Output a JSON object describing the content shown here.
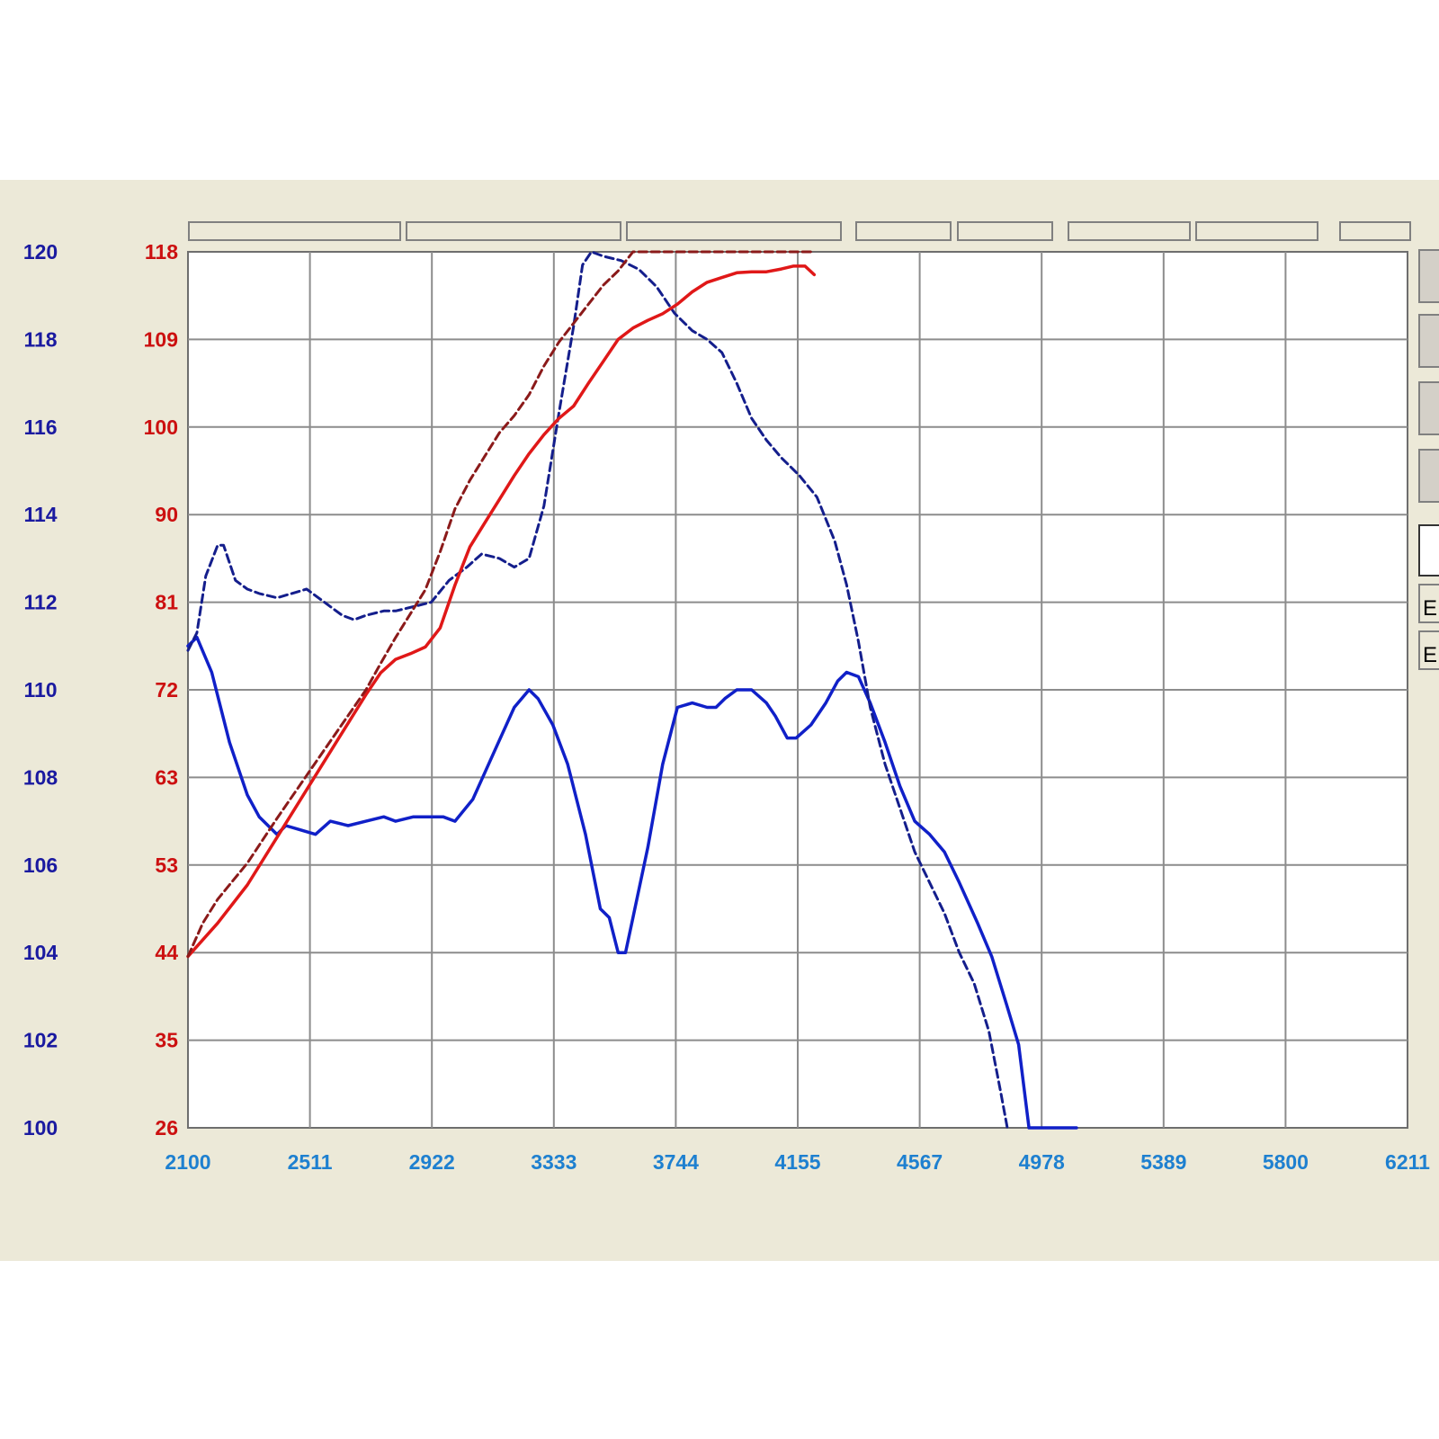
{
  "colors": {
    "background": "#ece9d8",
    "plot_background": "#ffffff",
    "grid": "#8c8c8c",
    "left_axis_blue": "#1a1aa0",
    "left_axis_red": "#cc1010",
    "x_axis": "#1e80d0",
    "series_blue": "#1020c8",
    "series_red": "#e01818",
    "series_red_dashed": "#8b1a1a",
    "series_blue_dashed": "#141e8c"
  },
  "legend_tabs": [
    {
      "label": "E",
      "color": "#1020c8"
    },
    {
      "label": "E",
      "color": "#e01818"
    }
  ],
  "chart_data": {
    "type": "line",
    "grid": true,
    "x_ticks": [
      "2100",
      "2511",
      "2922",
      "3333",
      "3744",
      "4155",
      "4567",
      "4978",
      "5389",
      "5800",
      "6211"
    ],
    "xlim": [
      2100,
      6211
    ],
    "y_left_outer_ticks": [
      "120",
      "118",
      "116",
      "114",
      "112",
      "110",
      "108",
      "106",
      "104",
      "102",
      "100"
    ],
    "y_left_outer_lim": [
      100,
      120
    ],
    "y_left_inner_ticks": [
      "118",
      "109",
      "100",
      "90",
      "81",
      "72",
      "63",
      "53",
      "44",
      "35",
      "26"
    ],
    "y_left_inner_lim": [
      26,
      118
    ],
    "series": [
      {
        "axis": "outer",
        "style": "solid",
        "color": "#1020c8",
        "points": [
          [
            2100,
            111.0
          ],
          [
            2130,
            111.2
          ],
          [
            2180,
            110.4
          ],
          [
            2240,
            108.8
          ],
          [
            2300,
            107.6
          ],
          [
            2340,
            107.1
          ],
          [
            2400,
            106.7
          ],
          [
            2430,
            106.9
          ],
          [
            2480,
            106.8
          ],
          [
            2530,
            106.7
          ],
          [
            2580,
            107.0
          ],
          [
            2640,
            106.9
          ],
          [
            2700,
            107.0
          ],
          [
            2760,
            107.1
          ],
          [
            2800,
            107.0
          ],
          [
            2860,
            107.1
          ],
          [
            2900,
            107.1
          ],
          [
            2960,
            107.1
          ],
          [
            3000,
            107.0
          ],
          [
            3060,
            107.5
          ],
          [
            3140,
            108.7
          ],
          [
            3200,
            109.6
          ],
          [
            3250,
            110.0
          ],
          [
            3280,
            109.8
          ],
          [
            3330,
            109.2
          ],
          [
            3380,
            108.3
          ],
          [
            3440,
            106.7
          ],
          [
            3490,
            105.0
          ],
          [
            3520,
            104.8
          ],
          [
            3550,
            104.0
          ],
          [
            3575,
            104.0
          ],
          [
            3600,
            104.8
          ],
          [
            3650,
            106.4
          ],
          [
            3700,
            108.3
          ],
          [
            3750,
            109.6
          ],
          [
            3800,
            109.7
          ],
          [
            3850,
            109.6
          ],
          [
            3880,
            109.6
          ],
          [
            3910,
            109.8
          ],
          [
            3950,
            110.0
          ],
          [
            4000,
            110.0
          ],
          [
            4050,
            109.7
          ],
          [
            4080,
            109.4
          ],
          [
            4120,
            108.9
          ],
          [
            4150,
            108.9
          ],
          [
            4200,
            109.2
          ],
          [
            4250,
            109.7
          ],
          [
            4290,
            110.2
          ],
          [
            4320,
            110.4
          ],
          [
            4360,
            110.3
          ],
          [
            4400,
            109.7
          ],
          [
            4450,
            108.8
          ],
          [
            4500,
            107.8
          ],
          [
            4550,
            107.0
          ],
          [
            4600,
            106.7
          ],
          [
            4650,
            106.3
          ],
          [
            4700,
            105.6
          ],
          [
            4760,
            104.7
          ],
          [
            4810,
            103.9
          ],
          [
            4860,
            102.8
          ],
          [
            4900,
            101.9
          ],
          [
            4935,
            100.0
          ],
          [
            5000,
            100.0
          ],
          [
            5050,
            100.0
          ],
          [
            5095,
            100.0
          ]
        ]
      },
      {
        "axis": "outer",
        "style": "dashed",
        "color": "#141e8c",
        "points": [
          [
            2100,
            110.9
          ],
          [
            2130,
            111.3
          ],
          [
            2160,
            112.6
          ],
          [
            2200,
            113.3
          ],
          [
            2220,
            113.3
          ],
          [
            2260,
            112.5
          ],
          [
            2300,
            112.3
          ],
          [
            2340,
            112.2
          ],
          [
            2400,
            112.1
          ],
          [
            2450,
            112.2
          ],
          [
            2500,
            112.3
          ],
          [
            2560,
            112.0
          ],
          [
            2620,
            111.7
          ],
          [
            2660,
            111.6
          ],
          [
            2700,
            111.7
          ],
          [
            2760,
            111.8
          ],
          [
            2800,
            111.8
          ],
          [
            2860,
            111.9
          ],
          [
            2920,
            112.0
          ],
          [
            2980,
            112.5
          ],
          [
            3040,
            112.8
          ],
          [
            3090,
            113.1
          ],
          [
            3150,
            113.0
          ],
          [
            3200,
            112.8
          ],
          [
            3250,
            113.0
          ],
          [
            3300,
            114.2
          ],
          [
            3350,
            116.3
          ],
          [
            3400,
            118.3
          ],
          [
            3430,
            119.7
          ],
          [
            3460,
            120.1
          ],
          [
            3500,
            119.9
          ],
          [
            3560,
            119.8
          ],
          [
            3620,
            119.6
          ],
          [
            3680,
            119.2
          ],
          [
            3740,
            118.6
          ],
          [
            3800,
            118.2
          ],
          [
            3850,
            118.0
          ],
          [
            3900,
            117.7
          ],
          [
            3950,
            117.0
          ],
          [
            4000,
            116.2
          ],
          [
            4050,
            115.7
          ],
          [
            4100,
            115.3
          ],
          [
            4160,
            114.9
          ],
          [
            4220,
            114.4
          ],
          [
            4280,
            113.4
          ],
          [
            4320,
            112.4
          ],
          [
            4360,
            111.1
          ],
          [
            4400,
            109.6
          ],
          [
            4450,
            108.3
          ],
          [
            4500,
            107.3
          ],
          [
            4550,
            106.3
          ],
          [
            4600,
            105.6
          ],
          [
            4650,
            104.9
          ],
          [
            4700,
            104.0
          ],
          [
            4750,
            103.3
          ],
          [
            4800,
            102.2
          ],
          [
            4840,
            100.8
          ],
          [
            4862,
            100.0
          ]
        ]
      },
      {
        "axis": "inner",
        "style": "solid",
        "color": "#e01818",
        "points": [
          [
            2100,
            44.0
          ],
          [
            2200,
            47.5
          ],
          [
            2300,
            51.5
          ],
          [
            2400,
            56.5
          ],
          [
            2500,
            61.5
          ],
          [
            2600,
            66.5
          ],
          [
            2700,
            71.5
          ],
          [
            2750,
            73.8
          ],
          [
            2800,
            75.2
          ],
          [
            2850,
            75.8
          ],
          [
            2900,
            76.5
          ],
          [
            2950,
            78.5
          ],
          [
            3000,
            83.0
          ],
          [
            3050,
            87.0
          ],
          [
            3100,
            89.5
          ],
          [
            3150,
            92.0
          ],
          [
            3200,
            94.5
          ],
          [
            3250,
            96.8
          ],
          [
            3300,
            98.8
          ],
          [
            3350,
            100.5
          ],
          [
            3400,
            101.8
          ],
          [
            3450,
            104.2
          ],
          [
            3500,
            106.5
          ],
          [
            3550,
            108.8
          ],
          [
            3600,
            110.0
          ],
          [
            3650,
            110.8
          ],
          [
            3700,
            111.5
          ],
          [
            3750,
            112.5
          ],
          [
            3800,
            113.8
          ],
          [
            3850,
            114.8
          ],
          [
            3900,
            115.3
          ],
          [
            3950,
            115.8
          ],
          [
            4000,
            115.9
          ],
          [
            4050,
            115.9
          ],
          [
            4100,
            116.2
          ],
          [
            4140,
            116.5
          ],
          [
            4180,
            116.5
          ],
          [
            4211,
            115.6
          ]
        ]
      },
      {
        "axis": "inner",
        "style": "dashed",
        "color": "#8b1a1a",
        "points": [
          [
            2100,
            44.0
          ],
          [
            2150,
            47.5
          ],
          [
            2200,
            50.0
          ],
          [
            2300,
            53.8
          ],
          [
            2400,
            58.5
          ],
          [
            2500,
            63.0
          ],
          [
            2600,
            67.5
          ],
          [
            2700,
            72.0
          ],
          [
            2750,
            74.8
          ],
          [
            2800,
            77.5
          ],
          [
            2850,
            80.0
          ],
          [
            2900,
            82.5
          ],
          [
            2950,
            86.5
          ],
          [
            3000,
            91.0
          ],
          [
            3050,
            94.0
          ],
          [
            3100,
            96.5
          ],
          [
            3150,
            99.0
          ],
          [
            3200,
            100.8
          ],
          [
            3250,
            103.0
          ],
          [
            3300,
            106.0
          ],
          [
            3350,
            108.5
          ],
          [
            3400,
            110.5
          ],
          [
            3450,
            112.5
          ],
          [
            3500,
            114.5
          ],
          [
            3550,
            116.0
          ],
          [
            3600,
            118.0
          ],
          [
            3650,
            119.5
          ],
          [
            3700,
            120.0
          ],
          [
            3750,
            119.9
          ],
          [
            3800,
            120.2
          ],
          [
            3850,
            120.8
          ],
          [
            3950,
            121.2
          ],
          [
            4050,
            121.8
          ],
          [
            4150,
            121.6
          ],
          [
            4211,
            121.5
          ]
        ]
      }
    ]
  }
}
